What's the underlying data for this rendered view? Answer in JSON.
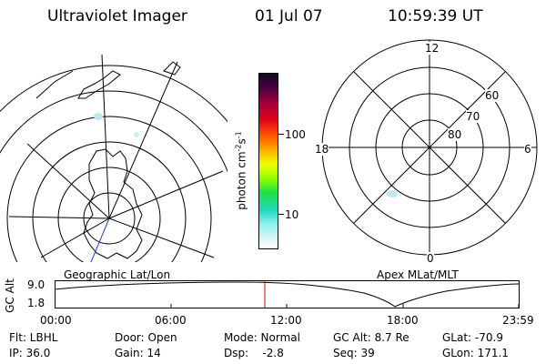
{
  "header": {
    "title": "Ultraviolet Imager",
    "date": "01 Jul 07",
    "time": "10:59:39 UT"
  },
  "colorbar": {
    "label_unit": "photon cm",
    "label_exp1": "-2",
    "label_s": "s",
    "label_exp2": "-1",
    "ticks": [
      "100",
      "10"
    ]
  },
  "polar": {
    "mlt_labels": {
      "top": "12",
      "left": "18",
      "right": "6",
      "bottom": "0"
    },
    "lat_labels": [
      "60",
      "70",
      "80"
    ]
  },
  "panel_labels": {
    "geo": "Geographic Lat/Lon",
    "apex": "Apex MLat/MLT"
  },
  "altitude_plot": {
    "axis_label": "GC Alt",
    "y_ticks": [
      "9.0",
      "1.8"
    ],
    "x_ticks": [
      "00:00",
      "06:00",
      "12:00",
      "18:00",
      "23:59"
    ]
  },
  "info": {
    "flt": "Flt: LBHL",
    "ip": "IP: 36.0",
    "door": "Door: Open",
    "gain": "Gain: 14",
    "mode": "Mode: Normal",
    "dsp": "Dsp:    -2.8",
    "gcalt": "GC Alt: 8.7 Re",
    "seq": "Seq: 39",
    "glat": "GLat: -70.9",
    "glon": "GLon: 171.1"
  }
}
